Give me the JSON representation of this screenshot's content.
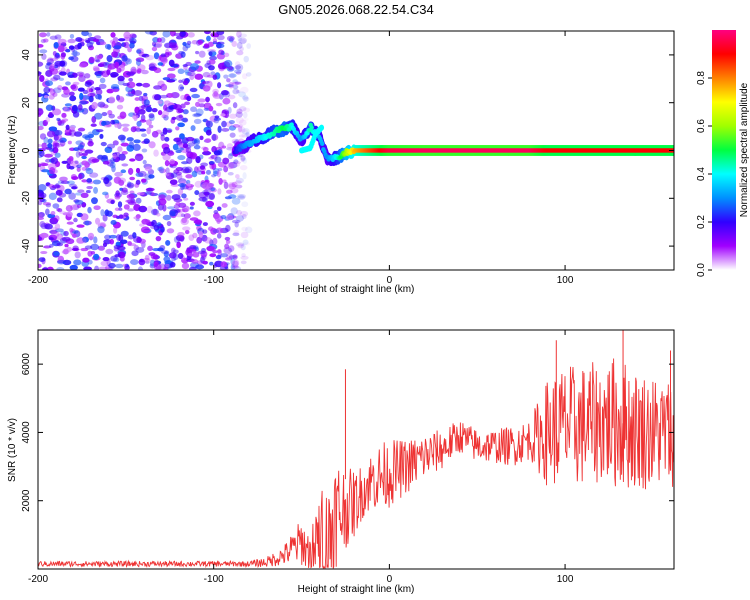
{
  "title": "GN05.2026.068.22.54.C34",
  "chart_data": [
    {
      "type": "heatmap",
      "xlabel": "Height of straight line (km)",
      "ylabel": "Frequency (Hz)",
      "xlim": [
        -200,
        162
      ],
      "ylim": [
        -50,
        50
      ],
      "x_ticks": [
        -200,
        -100,
        0,
        100
      ],
      "y_ticks": [
        -40,
        -20,
        0,
        20,
        40
      ],
      "noise_region": {
        "x_range": [
          -200,
          -80
        ],
        "y_range": [
          -50,
          50
        ],
        "amplitude_range": [
          0.05,
          0.3
        ]
      },
      "signal_track": {
        "x": [
          -88,
          -82,
          -75,
          -70,
          -65,
          -60,
          -55,
          -50,
          -45,
          -40,
          -35,
          -30,
          -25,
          -20,
          -10,
          0,
          20,
          50,
          80,
          90,
          100,
          120,
          140,
          162
        ],
        "frequency": [
          0,
          2,
          5,
          6,
          8,
          9,
          10,
          4,
          10,
          6,
          -4,
          -3,
          -1,
          0,
          0,
          0,
          0,
          0,
          0,
          0,
          0,
          0,
          0,
          0
        ],
        "amplitude": [
          0.2,
          0.3,
          0.35,
          0.4,
          0.45,
          0.5,
          0.4,
          0.3,
          0.45,
          0.35,
          0.3,
          0.4,
          0.6,
          0.75,
          0.85,
          0.95,
          0.97,
          0.97,
          0.97,
          0.9,
          0.9,
          0.9,
          0.9,
          0.9
        ]
      },
      "secondary_track": {
        "x": [
          -50,
          -45,
          -42,
          -38
        ],
        "frequency": [
          0,
          1,
          7,
          10
        ]
      },
      "colorbar": {
        "label": "Normalized spectral amplitude",
        "ticks": [
          0.0,
          0.2,
          0.4,
          0.6,
          0.8
        ],
        "tick_labels": [
          "0.0",
          "0.2",
          "0.4",
          "0.6",
          "0.8"
        ],
        "range": [
          0,
          1
        ],
        "stops": [
          "#ffffff",
          "#a000ff",
          "#3000ff",
          "#0090ff",
          "#00ffff",
          "#00ff40",
          "#a0ff00",
          "#ffff00",
          "#ff8000",
          "#ff0000",
          "#ff0080"
        ]
      }
    },
    {
      "type": "line",
      "xlabel": "Height of straight line (km)",
      "ylabel": "SNR (10 * v/v)",
      "xlim": [
        -200,
        162
      ],
      "ylim": [
        0,
        7000
      ],
      "x_ticks": [
        -200,
        -100,
        0,
        100
      ],
      "y_ticks": [
        2000,
        4000,
        6000
      ],
      "series": [
        {
          "name": "SNR",
          "color": "#ee3333",
          "x": [
            -200,
            -180,
            -160,
            -140,
            -120,
            -100,
            -90,
            -80,
            -70,
            -60,
            -55,
            -50,
            -45,
            -40,
            -35,
            -30,
            -25,
            -20,
            -15,
            -10,
            -5,
            0,
            10,
            20,
            30,
            40,
            50,
            60,
            70,
            80,
            90,
            100,
            110,
            120,
            130,
            140,
            150,
            162
          ],
          "values": [
            150,
            150,
            150,
            150,
            150,
            150,
            150,
            150,
            200,
            400,
            600,
            800,
            400,
            800,
            600,
            1600,
            1800,
            1900,
            2300,
            2600,
            2700,
            2800,
            3000,
            3300,
            3500,
            3900,
            3600,
            3600,
            3600,
            3800,
            4000,
            4200,
            4200,
            4300,
            4300,
            4100,
            4000,
            4000
          ],
          "spread": [
            80,
            80,
            80,
            80,
            80,
            80,
            80,
            80,
            150,
            300,
            500,
            700,
            600,
            1500,
            2000,
            1800,
            1200,
            1000,
            800,
            900,
            1000,
            1000,
            800,
            700,
            600,
            500,
            500,
            500,
            600,
            600,
            1600,
            1800,
            1800,
            1800,
            2000,
            1800,
            1700,
            1600
          ]
        }
      ],
      "annotations": [
        {
          "x": -25,
          "value": 5850,
          "label": ""
        },
        {
          "x": 95,
          "value": 6700,
          "label": ""
        },
        {
          "x": 133,
          "value": 7000,
          "label": ""
        },
        {
          "x": 160,
          "value": 6400,
          "label": ""
        }
      ]
    }
  ]
}
